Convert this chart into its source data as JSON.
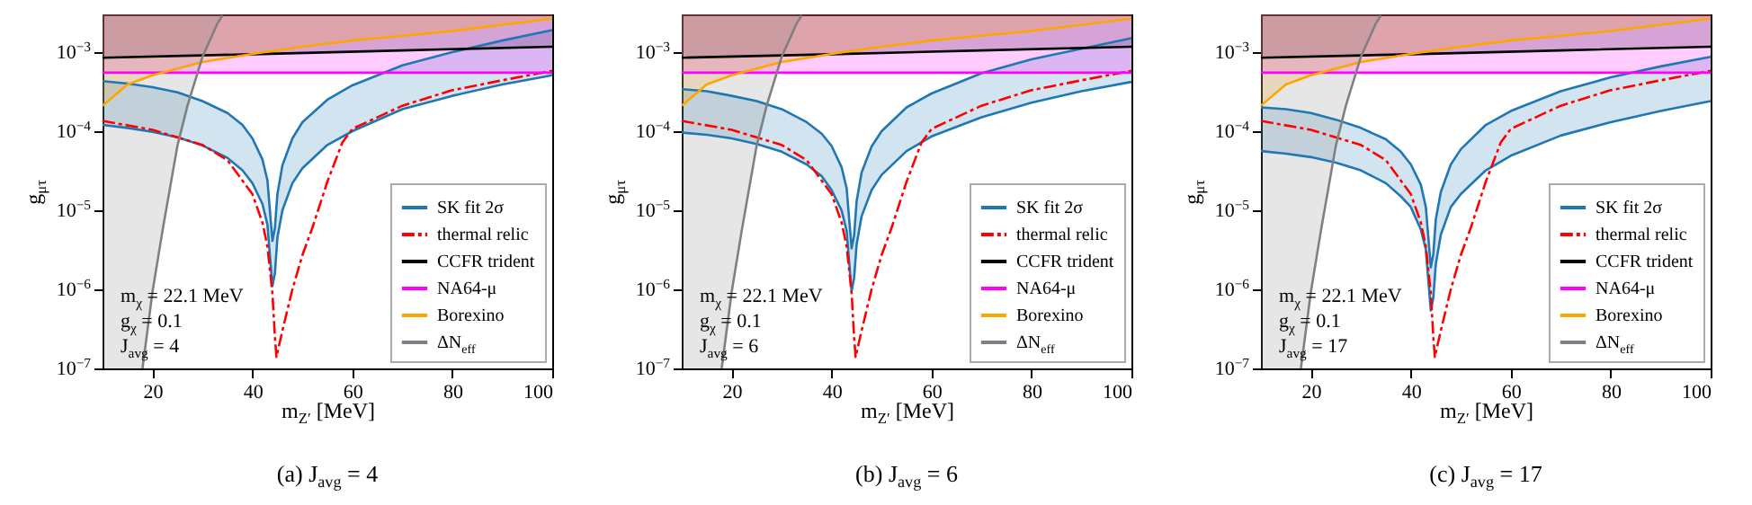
{
  "chart_data": [
    {
      "type": "line",
      "title": "(a) J$_{avg}$ = 4",
      "xlabel": "m$_{Z′}$ [MeV]",
      "ylabel": "g$_{μτ}$",
      "log": "y",
      "legend": "bottom right",
      "xlim": [
        10,
        100
      ],
      "xticks": [
        20,
        40,
        60,
        80,
        100
      ],
      "ylim": [
        1e-07,
        0.003
      ],
      "yticks": [
        {
          "value": 1e-07,
          "label": "10$^{−7}$"
        },
        {
          "value": 1e-06,
          "label": "10$^{−6}$"
        },
        {
          "value": 1e-05,
          "label": "10$^{−5}$"
        },
        {
          "value": 0.0001,
          "label": "10$^{−4}$"
        },
        {
          "value": 0.001,
          "label": "10$^{−3}$"
        }
      ],
      "annotations": [
        "m$_{χ}$ = 22.1 MeV",
        "g$_{χ}$ = 0.1",
        "J$_{avg}$ = 4"
      ],
      "series": [
        {
          "name": "SK fit 2σ",
          "type": "line",
          "color": "#1f77b4",
          "x": [
            10,
            15,
            20,
            25,
            30,
            35,
            38,
            40,
            42,
            43,
            44,
            44.5,
            45,
            46,
            48,
            50,
            55,
            60,
            70,
            80,
            90,
            100
          ],
          "lower": [
            0.00012,
            0.00011,
            9.8e-05,
            8.4e-05,
            6.6e-05,
            4.6e-05,
            3.2e-05,
            2.2e-05,
            1.2e-05,
            6.6e-06,
            1.1e-06,
            1.6e-06,
            4.5e-06,
            1e-05,
            2.2e-05,
            3.4e-05,
            6.7e-05,
            0.0001,
            0.00019,
            0.00028,
            0.00039,
            0.00051
          ],
          "values": [
            0.00043,
            0.0004,
            0.00036,
            0.00031,
            0.00024,
            0.00017,
            0.00012,
            8.1e-05,
            4.4e-05,
            2.4e-05,
            4.1e-06,
            6e-06,
            1.6e-05,
            3.7e-05,
            8.1e-05,
            0.00013,
            0.00025,
            0.00038,
            0.00068,
            0.001,
            0.0014,
            0.0019
          ],
          "upper": [
            0.00043,
            0.0004,
            0.00036,
            0.00031,
            0.00024,
            0.00017,
            0.00012,
            8.1e-05,
            4.4e-05,
            2.4e-05,
            4.1e-06,
            6e-06,
            1.6e-05,
            3.7e-05,
            8.1e-05,
            0.00013,
            0.00025,
            0.00038,
            0.00068,
            0.001,
            0.0014,
            0.0019
          ]
        },
        {
          "type": "line",
          "color": "#1f77b4",
          "x": [
            10,
            15,
            20,
            25,
            30,
            35,
            38,
            40,
            42,
            43,
            44,
            44.5,
            45,
            46,
            48,
            50,
            55,
            60,
            70,
            80,
            90,
            100
          ],
          "values": [
            0.00012,
            0.00011,
            9.8e-05,
            8.4e-05,
            6.6e-05,
            4.6e-05,
            3.2e-05,
            2.2e-05,
            1.2e-05,
            6.6e-06,
            1.1e-06,
            1.6e-06,
            4.5e-06,
            1e-05,
            2.2e-05,
            3.4e-05,
            6.7e-05,
            0.0001,
            0.00019,
            0.00028,
            0.00039,
            0.00051
          ]
        },
        {
          "name": "thermal relic",
          "type": "line",
          "color": "#ff0000",
          "line_style": "dashed",
          "x": [
            10,
            20,
            30,
            35,
            40,
            42,
            43,
            44,
            44.5,
            44.8,
            45.2,
            46,
            48,
            50,
            52,
            55,
            58,
            60,
            70,
            80,
            90,
            100
          ],
          "values": [
            0.000135,
            0.000104,
            6.7e-05,
            4.3e-05,
            1.6e-05,
            7e-06,
            3.5e-06,
            9e-07,
            2.5e-07,
            1.4e-07,
            1.8e-07,
            3e-07,
            1e-06,
            2.7e-06,
            6e-06,
            2.3e-05,
            7.2e-05,
            0.000107,
            0.00021,
            0.00033,
            0.00044,
            0.00058
          ]
        },
        {
          "name": "CCFR trident",
          "type": "line",
          "color": "#000000",
          "x": [
            10,
            40,
            70,
            100
          ],
          "values": [
            0.00085,
            0.00094,
            0.00105,
            0.00117
          ],
          "lower": [
            0.00085,
            0.00094,
            0.00105,
            0.00117
          ],
          "upper": [
            0.003,
            0.003,
            0.003,
            0.003
          ]
        },
        {
          "name": "NA64-μ",
          "type": "line",
          "color": "#ff00ff",
          "x": [
            10,
            100
          ],
          "values": [
            0.00055,
            0.00055
          ],
          "lower": [
            0.00055,
            0.00055
          ],
          "upper": [
            0.003,
            0.003
          ]
        },
        {
          "name": "Borexino",
          "type": "line",
          "color": "#ffa500",
          "x": [
            10,
            15,
            20,
            30,
            40,
            50,
            60,
            80,
            100
          ],
          "values": [
            0.00021,
            0.00039,
            0.00051,
            0.00075,
            0.00095,
            0.00117,
            0.0014,
            0.00185,
            0.00265
          ],
          "lower": [
            0.00021,
            0.00039,
            0.00051,
            0.00075,
            0.00095,
            0.00117,
            0.0014,
            0.00185,
            0.00265
          ],
          "upper": [
            0.003,
            0.003,
            0.003,
            0.003,
            0.003,
            0.003,
            0.003,
            0.003,
            0.003
          ]
        },
        {
          "name": "ΔN$_{eff}$",
          "type": "line",
          "color": "#808080",
          "x": [
            10,
            18,
            20,
            22,
            25,
            27,
            30,
            33,
            34
          ],
          "values": [
            null,
            1e-07,
            9.3e-07,
            5.5e-06,
            6.6e-05,
            0.00021,
            0.00087,
            0.0023,
            0.0029
          ],
          "lower": [
            1e-07,
            1e-07,
            9.3e-07,
            5.5e-06,
            6.6e-05,
            0.00021,
            0.00087,
            0.0023,
            0.0029
          ],
          "upper": [
            0.003,
            0.003,
            0.003,
            0.003,
            0.003,
            0.003,
            0.003,
            0.003,
            0.003
          ]
        }
      ]
    },
    {
      "type": "line",
      "title": "(b) J$_{avg}$ = 6",
      "xlabel": "m$_{Z′}$ [MeV]",
      "ylabel": "g$_{μτ}$",
      "log": "y",
      "legend": "bottom right",
      "xlim": [
        10,
        100
      ],
      "xticks": [
        20,
        40,
        60,
        80,
        100
      ],
      "ylim": [
        1e-07,
        0.003
      ],
      "yticks": [
        {
          "value": 1e-07,
          "label": "10$^{−7}$"
        },
        {
          "value": 1e-06,
          "label": "10$^{−6}$"
        },
        {
          "value": 1e-05,
          "label": "10$^{−5}$"
        },
        {
          "value": 0.0001,
          "label": "10$^{−4}$"
        },
        {
          "value": 0.001,
          "label": "10$^{−3}$"
        }
      ],
      "annotations": [
        "m$_{χ}$ = 22.1 MeV",
        "g$_{χ}$ = 0.1",
        "J$_{avg}$ = 6"
      ],
      "series": [
        {
          "name": "SK fit 2σ",
          "type": "line",
          "color": "#1f77b4",
          "x": [
            10,
            15,
            20,
            25,
            30,
            35,
            38,
            40,
            42,
            43,
            44,
            44.5,
            45,
            46,
            48,
            50,
            55,
            60,
            70,
            80,
            90,
            100
          ],
          "lower": [
            9.6e-05,
            9e-05,
            8.1e-05,
            6.9e-05,
            5.5e-05,
            3.8e-05,
            2.7e-05,
            1.8e-05,
            9.9e-06,
            5.5e-06,
            9.4e-07,
            1.4e-06,
            3.7e-06,
            8.4e-06,
            1.8e-05,
            2.8e-05,
            5.6e-05,
            8.6e-05,
            0.00015,
            0.00023,
            0.00032,
            0.00042
          ],
          "values": [
            0.00034,
            0.00032,
            0.00028,
            0.00024,
            0.00019,
            0.00013,
            9.3e-05,
            6.5e-05,
            3.5e-05,
            1.9e-05,
            3.3e-06,
            4.8e-06,
            1.3e-05,
            3e-05,
            6.4e-05,
            0.0001,
            0.0002,
            0.0003,
            0.00054,
            0.00081,
            0.0011,
            0.0015
          ],
          "upper": [
            0.00034,
            0.00032,
            0.00028,
            0.00024,
            0.00019,
            0.00013,
            9.3e-05,
            6.5e-05,
            3.5e-05,
            1.9e-05,
            3.3e-06,
            4.8e-06,
            1.3e-05,
            3e-05,
            6.4e-05,
            0.0001,
            0.0002,
            0.0003,
            0.00054,
            0.00081,
            0.0011,
            0.0015
          ]
        },
        {
          "type": "line",
          "color": "#1f77b4",
          "x": [
            10,
            15,
            20,
            25,
            30,
            35,
            38,
            40,
            42,
            43,
            44,
            44.5,
            45,
            46,
            48,
            50,
            55,
            60,
            70,
            80,
            90,
            100
          ],
          "values": [
            9.6e-05,
            9e-05,
            8.1e-05,
            6.9e-05,
            5.5e-05,
            3.8e-05,
            2.7e-05,
            1.8e-05,
            9.9e-06,
            5.5e-06,
            9.4e-07,
            1.4e-06,
            3.7e-06,
            8.4e-06,
            1.8e-05,
            2.8e-05,
            5.6e-05,
            8.6e-05,
            0.00015,
            0.00023,
            0.00032,
            0.00042
          ]
        },
        {
          "name": "thermal relic",
          "type": "line",
          "color": "#ff0000",
          "line_style": "dashed",
          "x": [
            10,
            20,
            30,
            35,
            40,
            42,
            43,
            44,
            44.5,
            44.8,
            45.2,
            46,
            48,
            50,
            52,
            55,
            58,
            60,
            70,
            80,
            90,
            100
          ],
          "values": [
            0.000135,
            0.000104,
            6.7e-05,
            4.3e-05,
            1.6e-05,
            7e-06,
            3.5e-06,
            9e-07,
            2.5e-07,
            1.4e-07,
            1.8e-07,
            3e-07,
            1e-06,
            2.7e-06,
            6e-06,
            2.3e-05,
            7.2e-05,
            0.000107,
            0.00021,
            0.00033,
            0.00044,
            0.00058
          ]
        },
        {
          "name": "CCFR trident",
          "type": "line",
          "color": "#000000",
          "x": [
            10,
            40,
            70,
            100
          ],
          "values": [
            0.00085,
            0.00094,
            0.00105,
            0.00117
          ],
          "lower": [
            0.00085,
            0.00094,
            0.00105,
            0.00117
          ],
          "upper": [
            0.003,
            0.003,
            0.003,
            0.003
          ]
        },
        {
          "name": "NA64-μ",
          "type": "line",
          "color": "#ff00ff",
          "x": [
            10,
            100
          ],
          "values": [
            0.00055,
            0.00055
          ],
          "lower": [
            0.00055,
            0.00055
          ],
          "upper": [
            0.003,
            0.003
          ]
        },
        {
          "name": "Borexino",
          "type": "line",
          "color": "#ffa500",
          "x": [
            10,
            15,
            20,
            30,
            40,
            50,
            60,
            80,
            100
          ],
          "values": [
            0.00021,
            0.00039,
            0.00051,
            0.00075,
            0.00095,
            0.00117,
            0.0014,
            0.00185,
            0.00265
          ],
          "lower": [
            0.00021,
            0.00039,
            0.00051,
            0.00075,
            0.00095,
            0.00117,
            0.0014,
            0.00185,
            0.00265
          ],
          "upper": [
            0.003,
            0.003,
            0.003,
            0.003,
            0.003,
            0.003,
            0.003,
            0.003,
            0.003
          ]
        },
        {
          "name": "ΔN$_{eff}$",
          "type": "line",
          "color": "#808080",
          "x": [
            10,
            18,
            20,
            22,
            25,
            27,
            30,
            33,
            34
          ],
          "values": [
            null,
            1e-07,
            9.3e-07,
            5.5e-06,
            6.6e-05,
            0.00021,
            0.00087,
            0.0023,
            0.0029
          ],
          "lower": [
            1e-07,
            1e-07,
            9.3e-07,
            5.5e-06,
            6.6e-05,
            0.00021,
            0.00087,
            0.0023,
            0.0029
          ],
          "upper": [
            0.003,
            0.003,
            0.003,
            0.003,
            0.003,
            0.003,
            0.003,
            0.003,
            0.003
          ]
        }
      ]
    },
    {
      "type": "line",
      "title": "(c) J$_{avg}$ = 17",
      "xlabel": "m$_{Z′}$ [MeV]",
      "ylabel": "g$_{μτ}$",
      "log": "y",
      "legend": "bottom right",
      "xlim": [
        10,
        100
      ],
      "xticks": [
        20,
        40,
        60,
        80,
        100
      ],
      "ylim": [
        1e-07,
        0.003
      ],
      "yticks": [
        {
          "value": 1e-07,
          "label": "10$^{−7}$"
        },
        {
          "value": 1e-06,
          "label": "10$^{−6}$"
        },
        {
          "value": 1e-05,
          "label": "10$^{−5}$"
        },
        {
          "value": 0.0001,
          "label": "10$^{−4}$"
        },
        {
          "value": 0.001,
          "label": "10$^{−3}$"
        }
      ],
      "annotations": [
        "m$_{χ}$ = 22.1 MeV",
        "g$_{χ}$ = 0.1",
        "J$_{avg}$ = 17"
      ],
      "series": [
        {
          "name": "SK fit 2σ",
          "type": "line",
          "color": "#1f77b4",
          "x": [
            10,
            15,
            20,
            25,
            30,
            35,
            38,
            40,
            42,
            43,
            44,
            44.5,
            45,
            46,
            48,
            50,
            55,
            60,
            70,
            80,
            90,
            100
          ],
          "lower": [
            5.6e-05,
            5.2e-05,
            4.7e-05,
            4e-05,
            3.2e-05,
            2.2e-05,
            1.5e-05,
            1.1e-05,
            5.7e-06,
            3.2e-06,
            5.4e-07,
            7.8e-07,
            2.1e-06,
            4.9e-06,
            1.1e-05,
            1.6e-05,
            3.2e-05,
            4.9e-05,
            8.8e-05,
            0.00013,
            0.00018,
            0.00024
          ],
          "values": [
            0.0002,
            0.00019,
            0.00017,
            0.00014,
            0.00011,
            7.9e-05,
            5.5e-05,
            3.8e-05,
            2.1e-05,
            1.1e-05,
            1.9e-06,
            2.8e-06,
            7.7e-06,
            1.7e-05,
            3.8e-05,
            5.9e-05,
            0.00012,
            0.00018,
            0.00032,
            0.00048,
            0.00066,
            0.00087
          ],
          "upper": [
            0.0002,
            0.00019,
            0.00017,
            0.00014,
            0.00011,
            7.9e-05,
            5.5e-05,
            3.8e-05,
            2.1e-05,
            1.1e-05,
            1.9e-06,
            2.8e-06,
            7.7e-06,
            1.7e-05,
            3.8e-05,
            5.9e-05,
            0.00012,
            0.00018,
            0.00032,
            0.00048,
            0.00066,
            0.00087
          ]
        },
        {
          "type": "line",
          "color": "#1f77b4",
          "x": [
            10,
            15,
            20,
            25,
            30,
            35,
            38,
            40,
            42,
            43,
            44,
            44.5,
            45,
            46,
            48,
            50,
            55,
            60,
            70,
            80,
            90,
            100
          ],
          "values": [
            5.6e-05,
            5.2e-05,
            4.7e-05,
            4e-05,
            3.2e-05,
            2.2e-05,
            1.5e-05,
            1.1e-05,
            5.7e-06,
            3.2e-06,
            5.4e-07,
            7.8e-07,
            2.1e-06,
            4.9e-06,
            1.1e-05,
            1.6e-05,
            3.2e-05,
            4.9e-05,
            8.8e-05,
            0.00013,
            0.00018,
            0.00024
          ]
        },
        {
          "name": "thermal relic",
          "type": "line",
          "color": "#ff0000",
          "line_style": "dashed",
          "x": [
            10,
            20,
            30,
            35,
            40,
            42,
            43,
            44,
            44.5,
            44.8,
            45.2,
            46,
            48,
            50,
            52,
            55,
            58,
            60,
            70,
            80,
            90,
            100
          ],
          "values": [
            0.000135,
            0.000104,
            6.7e-05,
            4.3e-05,
            1.6e-05,
            7e-06,
            3.5e-06,
            9e-07,
            2.5e-07,
            1.4e-07,
            1.8e-07,
            3e-07,
            1e-06,
            2.7e-06,
            6e-06,
            2.3e-05,
            7.2e-05,
            0.000107,
            0.00021,
            0.00033,
            0.00044,
            0.00058
          ]
        },
        {
          "name": "CCFR trident",
          "type": "line",
          "color": "#000000",
          "x": [
            10,
            40,
            70,
            100
          ],
          "values": [
            0.00085,
            0.00094,
            0.00105,
            0.00117
          ],
          "lower": [
            0.00085,
            0.00094,
            0.00105,
            0.00117
          ],
          "upper": [
            0.003,
            0.003,
            0.003,
            0.003
          ]
        },
        {
          "name": "NA64-μ",
          "type": "line",
          "color": "#ff00ff",
          "x": [
            10,
            100
          ],
          "values": [
            0.00055,
            0.00055
          ],
          "lower": [
            0.00055,
            0.00055
          ],
          "upper": [
            0.003,
            0.003
          ]
        },
        {
          "name": "Borexino",
          "type": "line",
          "color": "#ffa500",
          "x": [
            10,
            15,
            20,
            30,
            40,
            50,
            60,
            80,
            100
          ],
          "values": [
            0.00021,
            0.00039,
            0.00051,
            0.00075,
            0.00095,
            0.00117,
            0.0014,
            0.00185,
            0.00265
          ],
          "lower": [
            0.00021,
            0.00039,
            0.00051,
            0.00075,
            0.00095,
            0.00117,
            0.0014,
            0.00185,
            0.00265
          ],
          "upper": [
            0.003,
            0.003,
            0.003,
            0.003,
            0.003,
            0.003,
            0.003,
            0.003,
            0.003
          ]
        },
        {
          "name": "ΔN$_{eff}$",
          "type": "line",
          "color": "#808080",
          "x": [
            10,
            18,
            20,
            22,
            25,
            27,
            30,
            33,
            34
          ],
          "values": [
            null,
            1e-07,
            9.3e-07,
            5.5e-06,
            6.6e-05,
            0.00021,
            0.00087,
            0.0023,
            0.0029
          ],
          "lower": [
            1e-07,
            1e-07,
            9.3e-07,
            5.5e-06,
            6.6e-05,
            0.00021,
            0.00087,
            0.0023,
            0.0029
          ],
          "upper": [
            0.003,
            0.003,
            0.003,
            0.003,
            0.003,
            0.003,
            0.003,
            0.003,
            0.003
          ]
        }
      ]
    }
  ]
}
